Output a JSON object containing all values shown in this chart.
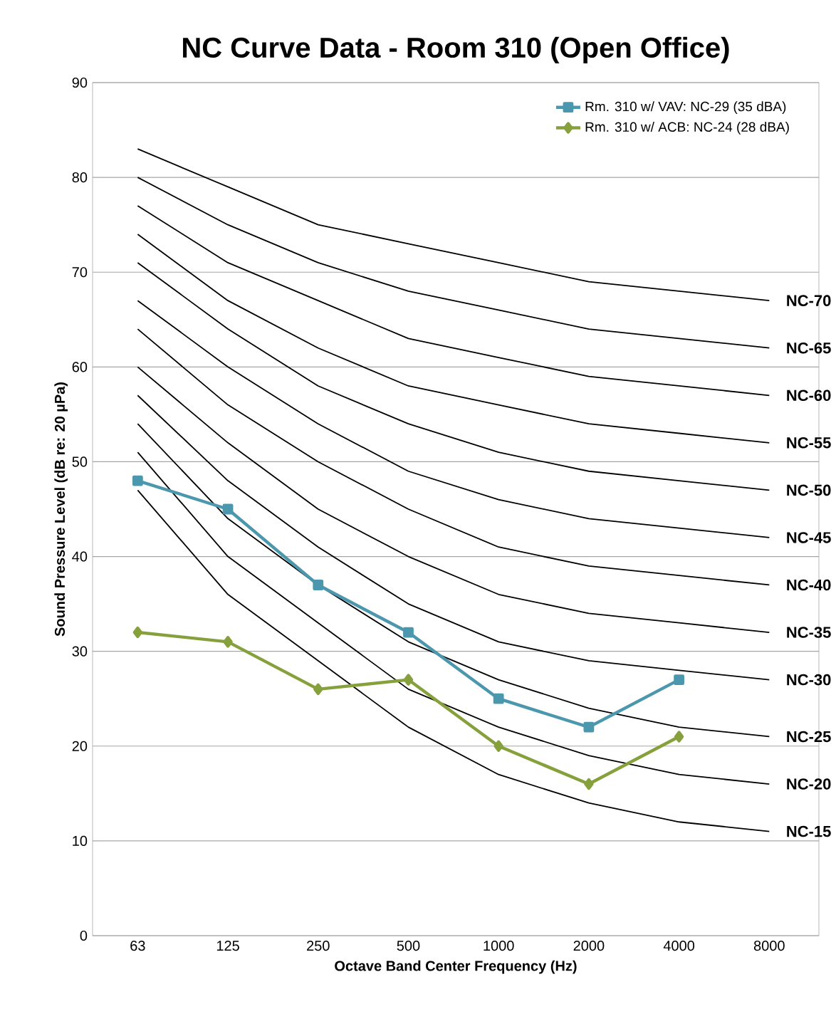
{
  "chart_data": {
    "type": "line",
    "title": "NC Curve Data - Room 310 (Open Office)",
    "xlabel": "Octave Band Center Frequency (Hz)",
    "ylabel": "Sound Pressure Level (dB re: 20 µPa)",
    "categories": [
      "63",
      "125",
      "250",
      "500",
      "1000",
      "2000",
      "4000",
      "8000"
    ],
    "ylim": [
      0,
      90
    ],
    "yticks": [
      0,
      10,
      20,
      30,
      40,
      50,
      60,
      70,
      80,
      90
    ],
    "grid": "y",
    "legend": "top right",
    "series": [
      {
        "name": "NC-70",
        "color": "#000000",
        "marker": "none",
        "values": [
          83,
          79,
          75,
          73,
          71,
          69,
          68,
          67
        ]
      },
      {
        "name": "NC-65",
        "color": "#000000",
        "marker": "none",
        "values": [
          80,
          75,
          71,
          68,
          66,
          64,
          63,
          62
        ]
      },
      {
        "name": "NC-60",
        "color": "#000000",
        "marker": "none",
        "values": [
          77,
          71,
          67,
          63,
          61,
          59,
          58,
          57
        ]
      },
      {
        "name": "NC-55",
        "color": "#000000",
        "marker": "none",
        "values": [
          74,
          67,
          62,
          58,
          56,
          54,
          53,
          52
        ]
      },
      {
        "name": "NC-50",
        "color": "#000000",
        "marker": "none",
        "values": [
          71,
          64,
          58,
          54,
          51,
          49,
          48,
          47
        ]
      },
      {
        "name": "NC-45",
        "color": "#000000",
        "marker": "none",
        "values": [
          67,
          60,
          54,
          49,
          46,
          44,
          43,
          42
        ]
      },
      {
        "name": "NC-40",
        "color": "#000000",
        "marker": "none",
        "values": [
          64,
          56,
          50,
          45,
          41,
          39,
          38,
          37
        ]
      },
      {
        "name": "NC-35",
        "color": "#000000",
        "marker": "none",
        "values": [
          60,
          52,
          45,
          40,
          36,
          34,
          33,
          32
        ]
      },
      {
        "name": "NC-30",
        "color": "#000000",
        "marker": "none",
        "values": [
          57,
          48,
          41,
          35,
          31,
          29,
          28,
          27
        ]
      },
      {
        "name": "NC-25",
        "color": "#000000",
        "marker": "none",
        "values": [
          54,
          44,
          37,
          31,
          27,
          24,
          22,
          21
        ]
      },
      {
        "name": "NC-20",
        "color": "#000000",
        "marker": "none",
        "values": [
          51,
          40,
          33,
          26,
          22,
          19,
          17,
          16
        ]
      },
      {
        "name": "NC-15",
        "color": "#000000",
        "marker": "none",
        "values": [
          47,
          36,
          29,
          22,
          17,
          14,
          12,
          11
        ]
      },
      {
        "name": "Rm. 310 w/ VAV: NC-29 (35 dBA)",
        "color": "#4b97ad",
        "marker": "square",
        "values": [
          48,
          45,
          37,
          32,
          25,
          22,
          27,
          null
        ]
      },
      {
        "name": "Rm. 310 w/ ACB: NC-24 (28 dBA)",
        "color": "#86a03c",
        "marker": "diamond",
        "values": [
          32,
          31,
          26,
          27,
          20,
          16,
          21,
          null
        ]
      }
    ]
  }
}
